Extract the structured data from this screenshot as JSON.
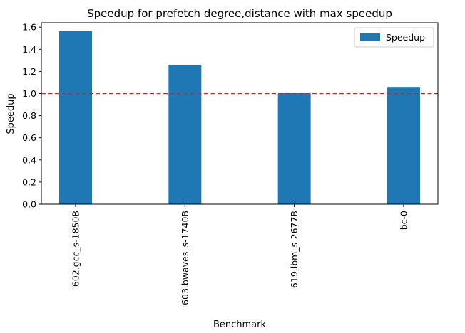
{
  "chart_data": {
    "type": "bar",
    "title": "Speedup for prefetch degree,distance with max speedup",
    "xlabel": "Benchmark",
    "ylabel": "Speedup",
    "categories": [
      "602.gcc_s-1850B",
      "603.bwaves_s-1740B",
      "619.lbm_s-2677B",
      "bc-0"
    ],
    "series": [
      {
        "name": "Speedup",
        "values": [
          1.565,
          1.26,
          1.005,
          1.06
        ],
        "color": "#1f77b4"
      }
    ],
    "ylim": [
      0.0,
      1.64
    ],
    "yticks": [
      "0.0",
      "0.2",
      "0.4",
      "0.6",
      "0.8",
      "1.0",
      "1.2",
      "1.4",
      "1.6"
    ],
    "reference_line": {
      "y": 1.0,
      "color": "#e41a1c",
      "style": "dashed"
    },
    "grid": false,
    "legend": {
      "placement": "top-right"
    }
  }
}
